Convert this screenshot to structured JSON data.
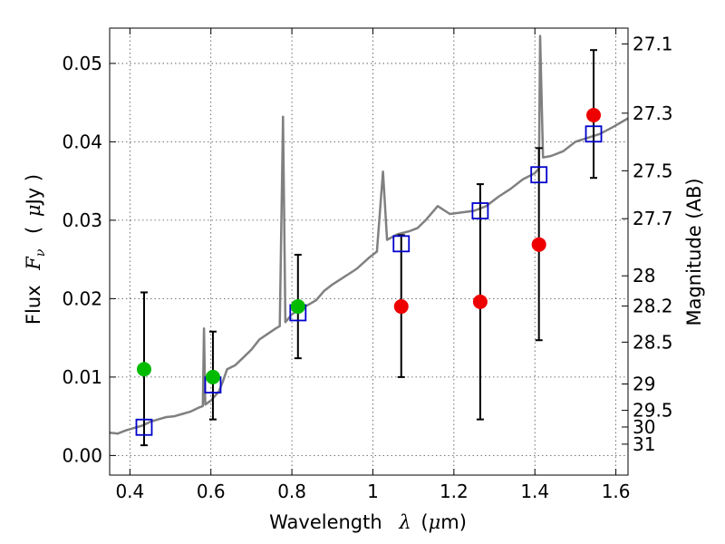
{
  "chart_data": {
    "type": "scatter",
    "xlabel": "Wavelength",
    "xlabel_symbol": "λ",
    "xlabel_unit_open": "(",
    "xlabel_unit_mu": "μ",
    "xlabel_unit_rest": "m)",
    "ylabel_prefix": "Flux",
    "ylabel_symbol": "F",
    "ylabel_subscript": "ν",
    "ylabel_unit_open": "(",
    "ylabel_unit_mu": "μ",
    "ylabel_unit_rest": "Jy )",
    "y2label": "Magnitude (AB)",
    "xlim": [
      0.35,
      1.63
    ],
    "ylim": [
      -0.0025,
      0.0545
    ],
    "grid": true,
    "x_ticks": [
      0.4,
      0.6,
      0.8,
      1.0,
      1.2,
      1.4,
      1.6
    ],
    "x_tick_labels": [
      "0.4",
      "0.6",
      "0.8",
      "1",
      "1.2",
      "1.4",
      "1.6"
    ],
    "y_ticks": [
      0.0,
      0.01,
      0.02,
      0.03,
      0.04,
      0.05
    ],
    "y_tick_labels": [
      "0.00",
      "0.01",
      "0.02",
      "0.03",
      "0.04",
      "0.05"
    ],
    "mag_ticks": [
      {
        "label": "27.1",
        "mag": 27.1
      },
      {
        "label": "27.3",
        "mag": 27.3
      },
      {
        "label": "27.5",
        "mag": 27.5
      },
      {
        "label": "27.7",
        "mag": 27.7
      },
      {
        "label": "28",
        "mag": 28.0
      },
      {
        "label": "28.2",
        "mag": 28.2
      },
      {
        "label": "28.5",
        "mag": 28.5
      },
      {
        "label": "29",
        "mag": 29.0
      },
      {
        "label": "29.5",
        "mag": 29.5
      },
      {
        "label": "30",
        "mag": 30.0
      },
      {
        "label": "31",
        "mag": 31.0
      }
    ],
    "series": [
      {
        "name": "model spectrum",
        "kind": "line",
        "color": "#808080",
        "points": [
          [
            0.35,
            0.0029
          ],
          [
            0.37,
            0.0028
          ],
          [
            0.39,
            0.0032
          ],
          [
            0.41,
            0.0035
          ],
          [
            0.43,
            0.0038
          ],
          [
            0.45,
            0.0043
          ],
          [
            0.47,
            0.0046
          ],
          [
            0.49,
            0.0049
          ],
          [
            0.51,
            0.005
          ],
          [
            0.53,
            0.0053
          ],
          [
            0.55,
            0.0056
          ],
          [
            0.57,
            0.0061
          ],
          [
            0.58,
            0.0063
          ],
          [
            0.583,
            0.0162
          ],
          [
            0.586,
            0.0065
          ],
          [
            0.6,
            0.007
          ],
          [
            0.62,
            0.0082
          ],
          [
            0.63,
            0.0095
          ],
          [
            0.64,
            0.011
          ],
          [
            0.66,
            0.0115
          ],
          [
            0.68,
            0.0125
          ],
          [
            0.7,
            0.0135
          ],
          [
            0.72,
            0.0148
          ],
          [
            0.74,
            0.0155
          ],
          [
            0.76,
            0.0162
          ],
          [
            0.77,
            0.0165
          ],
          [
            0.778,
            0.0432
          ],
          [
            0.784,
            0.017
          ],
          [
            0.8,
            0.018
          ],
          [
            0.82,
            0.0187
          ],
          [
            0.84,
            0.0192
          ],
          [
            0.86,
            0.0198
          ],
          [
            0.88,
            0.021
          ],
          [
            0.9,
            0.0218
          ],
          [
            0.93,
            0.0228
          ],
          [
            0.96,
            0.0238
          ],
          [
            0.99,
            0.0252
          ],
          [
            1.01,
            0.026
          ],
          [
            1.025,
            0.0362
          ],
          [
            1.035,
            0.0275
          ],
          [
            1.06,
            0.0282
          ],
          [
            1.09,
            0.0286
          ],
          [
            1.11,
            0.029
          ],
          [
            1.13,
            0.03
          ],
          [
            1.16,
            0.0318
          ],
          [
            1.19,
            0.0308
          ],
          [
            1.22,
            0.031
          ],
          [
            1.25,
            0.0312
          ],
          [
            1.28,
            0.0318
          ],
          [
            1.31,
            0.033
          ],
          [
            1.34,
            0.034
          ],
          [
            1.37,
            0.0352
          ],
          [
            1.4,
            0.036
          ],
          [
            1.41,
            0.0366
          ],
          [
            1.413,
            0.0535
          ],
          [
            1.42,
            0.038
          ],
          [
            1.44,
            0.0382
          ],
          [
            1.47,
            0.0388
          ],
          [
            1.5,
            0.04
          ],
          [
            1.53,
            0.0405
          ],
          [
            1.56,
            0.041
          ],
          [
            1.59,
            0.0418
          ],
          [
            1.63,
            0.043
          ]
        ]
      },
      {
        "name": "model photometry",
        "kind": "open-square",
        "color": "#0000cc",
        "points": [
          [
            0.435,
            0.0036
          ],
          [
            0.605,
            0.009
          ],
          [
            0.815,
            0.0182
          ],
          [
            1.07,
            0.027
          ],
          [
            1.265,
            0.0312
          ],
          [
            1.41,
            0.0358
          ],
          [
            1.545,
            0.041
          ]
        ]
      },
      {
        "name": "green detections",
        "kind": "filled-circle",
        "color": "#00bb00",
        "points": [
          [
            0.435,
            0.011
          ],
          [
            0.605,
            0.01
          ],
          [
            0.815,
            0.019
          ]
        ]
      },
      {
        "name": "red detections",
        "kind": "filled-circle",
        "color": "#ee0000",
        "points": [
          [
            1.07,
            0.019
          ],
          [
            1.265,
            0.0196
          ],
          [
            1.41,
            0.0269
          ],
          [
            1.545,
            0.0434
          ]
        ]
      }
    ],
    "errorbars": [
      {
        "x": 0.435,
        "low": 0.0013,
        "high": 0.0208
      },
      {
        "x": 0.605,
        "low": 0.0046,
        "high": 0.0158
      },
      {
        "x": 0.815,
        "low": 0.0124,
        "high": 0.0256
      },
      {
        "x": 1.07,
        "low": 0.01,
        "high": 0.0281
      },
      {
        "x": 1.265,
        "low": 0.0046,
        "high": 0.0346
      },
      {
        "x": 1.41,
        "low": 0.0147,
        "high": 0.0392
      },
      {
        "x": 1.545,
        "low": 0.0354,
        "high": 0.0517
      }
    ]
  }
}
